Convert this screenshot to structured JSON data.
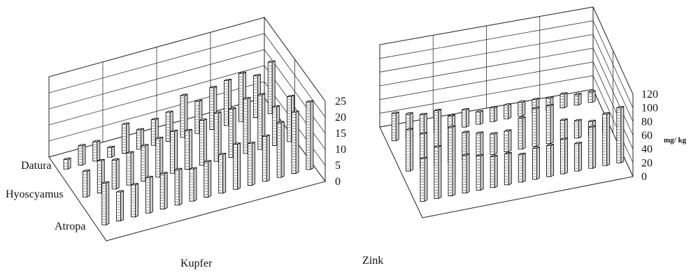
{
  "labels": {
    "row1": "Datura",
    "row2": "Hyoscyamus",
    "row3": "Atropa",
    "title_left": "Kupfer",
    "title_right": "Zink",
    "unit_right": "mg/ kg"
  },
  "chart_data": [
    {
      "type": "bar",
      "title": "Kupfer",
      "zlabel": "",
      "zlim": [
        0,
        25
      ],
      "zticks": [
        0,
        5,
        10,
        15,
        20,
        25
      ],
      "series": [
        {
          "name": "Datura",
          "values": [
            13,
            9,
            10,
            11,
            11,
            11,
            10,
            11,
            12,
            14,
            13,
            14,
            17,
            19,
            21
          ]
        },
        {
          "name": "Hyoscyamus",
          "values": [
            8,
            10,
            9,
            10,
            11,
            12,
            13,
            12,
            14,
            15,
            15,
            17,
            17,
            12,
            14
          ]
        },
        {
          "name": "Atropa",
          "values": [
            3,
            6,
            6,
            3,
            9,
            6,
            8,
            9,
            13,
            10,
            13,
            14,
            15,
            13,
            16
          ]
        }
      ]
    },
    {
      "type": "bar",
      "title": "Zink",
      "zlabel": "mg/ kg",
      "zlim": [
        0,
        120
      ],
      "zticks": [
        0,
        20,
        40,
        60,
        80,
        100,
        120
      ],
      "series": [
        {
          "name": "Datura",
          "values": [
            62,
            75,
            100,
            55,
            50,
            45,
            45,
            40,
            45,
            45,
            50,
            40,
            60,
            75,
            80
          ]
        },
        {
          "name": "Hyoscyamus",
          "values": [
            60,
            50,
            80,
            45,
            40,
            35,
            30,
            30,
            45,
            55,
            55,
            30,
            25,
            20,
            20
          ]
        },
        {
          "name": "Atropa",
          "values": [
            40,
            35,
            30,
            20,
            20,
            25,
            18,
            20,
            20,
            20,
            20,
            18,
            20,
            15,
            15
          ]
        }
      ]
    }
  ]
}
